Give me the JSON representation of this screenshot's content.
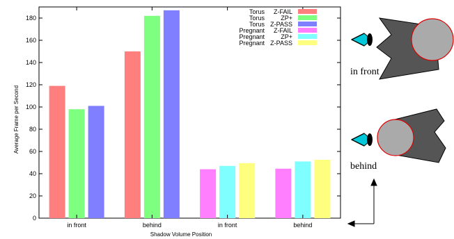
{
  "chart_data": {
    "type": "bar",
    "xlabel": "Shadow Volume Position",
    "ylabel": "Average Frame per Second",
    "ylim": [
      0,
      190
    ],
    "yticks": [
      0,
      20,
      40,
      60,
      80,
      100,
      120,
      140,
      160,
      180
    ],
    "grid": false,
    "legend_position": "top-right",
    "groups": [
      {
        "label": "in front",
        "series": [
          {
            "model": "Torus",
            "method": "Z-FAIL",
            "value": 119,
            "color": "#ff7f7f"
          },
          {
            "model": "Torus",
            "method": "ZP+",
            "value": 98,
            "color": "#7fff7f"
          },
          {
            "model": "Torus",
            "method": "Z-PASS",
            "value": 101,
            "color": "#7f7fff"
          }
        ]
      },
      {
        "label": "behind",
        "series": [
          {
            "model": "Torus",
            "method": "Z-FAIL",
            "value": 150,
            "color": "#ff7f7f"
          },
          {
            "model": "Torus",
            "method": "ZP+",
            "value": 182,
            "color": "#7fff7f"
          },
          {
            "model": "Torus",
            "method": "Z-PASS",
            "value": 187,
            "color": "#7f7fff"
          }
        ]
      },
      {
        "label": "in front",
        "series": [
          {
            "model": "Pregnant",
            "method": "Z-FAIL",
            "value": 44,
            "color": "#ff7fff"
          },
          {
            "model": "Pregnant",
            "method": "ZP+",
            "value": 47,
            "color": "#7fffff"
          },
          {
            "model": "Pregnant",
            "method": "Z-PASS",
            "value": 49.5,
            "color": "#ffff7f"
          }
        ]
      },
      {
        "label": "behind",
        "series": [
          {
            "model": "Pregnant",
            "method": "Z-FAIL",
            "value": 44.5,
            "color": "#ff7fff"
          },
          {
            "model": "Pregnant",
            "method": "ZP+",
            "value": 51,
            "color": "#7fffff"
          },
          {
            "model": "Pregnant",
            "method": "Z-PASS",
            "value": 52.5,
            "color": "#ffff7f"
          }
        ]
      }
    ],
    "legend": [
      {
        "model": "Torus",
        "method": "Z-FAIL",
        "color": "#ff7f7f"
      },
      {
        "model": "Torus",
        "method": "ZP+",
        "color": "#7fff7f"
      },
      {
        "model": "Torus",
        "method": "Z-PASS",
        "color": "#7f7fff"
      },
      {
        "model": "Pregnant",
        "method": "Z-FAIL",
        "color": "#ff7fff"
      },
      {
        "model": "Pregnant",
        "method": "ZP+",
        "color": "#7fffff"
      },
      {
        "model": "Pregnant",
        "method": "Z-PASS",
        "color": "#ffff7f"
      }
    ]
  },
  "diagram": {
    "labels": {
      "in_front": "in front",
      "behind": "behind"
    },
    "colors": {
      "volume": "#555555",
      "occluder": "#aaaaaa",
      "occluder_outline": "#dd0000",
      "eye": "#00c8d8",
      "pupil": "#000000"
    },
    "icons": [
      "eye-icon",
      "shadow-volume-icon",
      "occluder-sphere-icon",
      "axis-arrows-icon"
    ]
  }
}
